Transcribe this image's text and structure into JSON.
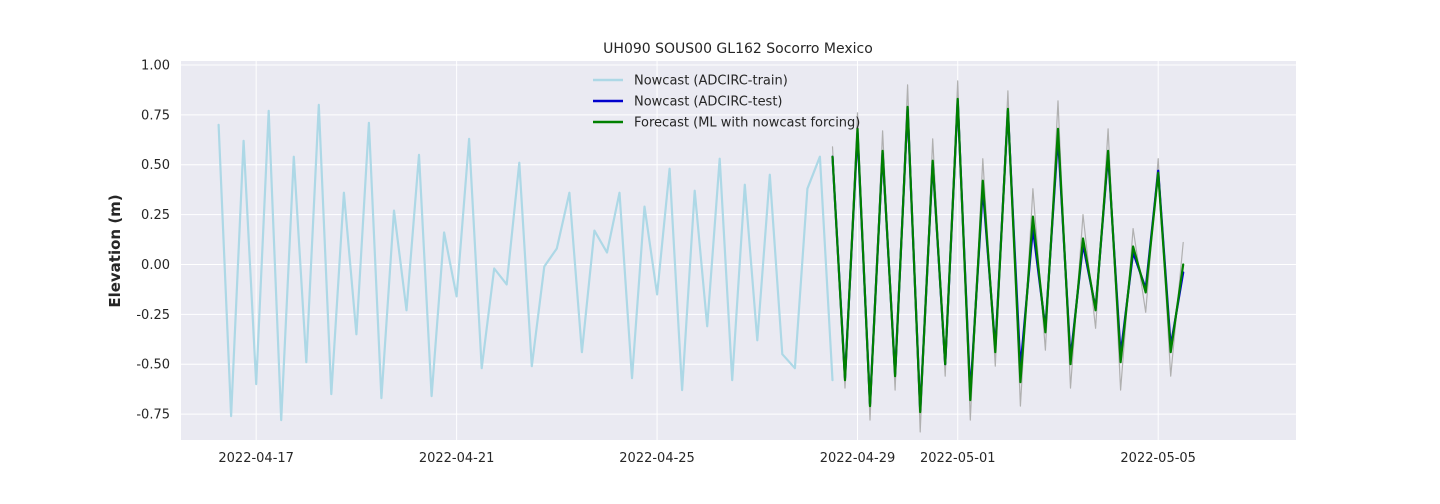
{
  "chart_data": {
    "type": "line",
    "title": "UH090 SOUS00 GL162 Socorro Mexico",
    "xlabel": "",
    "ylabel": "Elevation (m)",
    "xlim": [
      "2022-04-15T12:00",
      "2022-05-07T18:00"
    ],
    "ylim": [
      -0.88,
      1.02
    ],
    "grid": true,
    "legend_position": "top-center",
    "x_ticks": [
      "2022-04-17",
      "2022-04-21",
      "2022-04-25",
      "2022-04-29",
      "2022-05-01",
      "2022-05-05"
    ],
    "y_ticks": [
      "-0.75",
      "-0.50",
      "-0.25",
      "0.00",
      "0.25",
      "0.50",
      "0.75",
      "1.00"
    ],
    "series": [
      {
        "name": "Nowcast (ADCIRC-train)",
        "color": "#add8e6",
        "x": [
          "2022-04-16T06:00",
          "2022-04-16T12:00",
          "2022-04-16T18:00",
          "2022-04-17T00:00",
          "2022-04-17T06:00",
          "2022-04-17T12:00",
          "2022-04-17T18:00",
          "2022-04-18T00:00",
          "2022-04-18T06:00",
          "2022-04-18T12:00",
          "2022-04-18T18:00",
          "2022-04-19T00:00",
          "2022-04-19T06:00",
          "2022-04-19T12:00",
          "2022-04-19T18:00",
          "2022-04-20T00:00",
          "2022-04-20T06:00",
          "2022-04-20T12:00",
          "2022-04-20T18:00",
          "2022-04-21T00:00",
          "2022-04-21T06:00",
          "2022-04-21T12:00",
          "2022-04-21T18:00",
          "2022-04-22T00:00",
          "2022-04-22T06:00",
          "2022-04-22T12:00",
          "2022-04-22T18:00",
          "2022-04-23T00:00",
          "2022-04-23T06:00",
          "2022-04-23T12:00",
          "2022-04-23T18:00",
          "2022-04-24T00:00",
          "2022-04-24T06:00",
          "2022-04-24T12:00",
          "2022-04-24T18:00",
          "2022-04-25T00:00",
          "2022-04-25T06:00",
          "2022-04-25T12:00",
          "2022-04-25T18:00",
          "2022-04-26T00:00",
          "2022-04-26T06:00",
          "2022-04-26T12:00",
          "2022-04-26T18:00",
          "2022-04-27T00:00",
          "2022-04-27T06:00",
          "2022-04-27T12:00",
          "2022-04-27T18:00",
          "2022-04-28T00:00",
          "2022-04-28T06:00",
          "2022-04-28T12:00"
        ],
        "values": [
          0.7,
          -0.76,
          0.62,
          -0.6,
          0.77,
          -0.78,
          0.54,
          -0.49,
          0.8,
          -0.65,
          0.36,
          -0.35,
          0.71,
          -0.67,
          0.27,
          -0.23,
          0.55,
          -0.66,
          0.16,
          -0.16,
          0.63,
          -0.52,
          -0.02,
          -0.1,
          0.51,
          -0.51,
          -0.01,
          0.08,
          0.36,
          -0.44,
          0.17,
          0.06,
          0.36,
          -0.57,
          0.29,
          -0.15,
          0.48,
          -0.63,
          0.37,
          -0.31,
          0.53,
          -0.58,
          0.4,
          -0.38,
          0.45,
          -0.45,
          -0.52,
          0.38,
          0.54,
          -0.58
        ]
      },
      {
        "name": "",
        "color": "#b0b0b0",
        "x": [
          "2022-04-28T12:00",
          "2022-04-28T18:00",
          "2022-04-29T00:00",
          "2022-04-29T06:00",
          "2022-04-29T12:00",
          "2022-04-29T18:00",
          "2022-04-30T00:00",
          "2022-04-30T06:00",
          "2022-04-30T12:00",
          "2022-04-30T18:00",
          "2022-05-01T00:00",
          "2022-05-01T06:00",
          "2022-05-01T12:00",
          "2022-05-01T18:00",
          "2022-05-02T00:00",
          "2022-05-02T06:00",
          "2022-05-02T12:00",
          "2022-05-02T18:00",
          "2022-05-03T00:00",
          "2022-05-03T06:00",
          "2022-05-03T12:00",
          "2022-05-03T18:00",
          "2022-05-04T00:00",
          "2022-05-04T06:00",
          "2022-05-04T12:00",
          "2022-05-04T18:00",
          "2022-05-05T00:00",
          "2022-05-05T06:00",
          "2022-05-05T12:00"
        ],
        "values": [
          0.59,
          -0.62,
          0.76,
          -0.78,
          0.67,
          -0.63,
          0.9,
          -0.84,
          0.63,
          -0.56,
          0.92,
          -0.78,
          0.53,
          -0.51,
          0.87,
          -0.71,
          0.38,
          -0.43,
          0.82,
          -0.62,
          0.25,
          -0.32,
          0.68,
          -0.63,
          0.18,
          -0.24,
          0.53,
          -0.56,
          0.11
        ]
      },
      {
        "name": "Nowcast (ADCIRC-test)",
        "color": "#0000cd",
        "x": [
          "2022-04-28T12:00",
          "2022-04-28T18:00",
          "2022-04-29T00:00",
          "2022-04-29T06:00",
          "2022-04-29T12:00",
          "2022-04-29T18:00",
          "2022-04-30T00:00",
          "2022-04-30T06:00",
          "2022-04-30T12:00",
          "2022-04-30T18:00",
          "2022-05-01T00:00",
          "2022-05-01T06:00",
          "2022-05-01T12:00",
          "2022-05-01T18:00",
          "2022-05-02T00:00",
          "2022-05-02T06:00",
          "2022-05-02T12:00",
          "2022-05-02T18:00",
          "2022-05-03T00:00",
          "2022-05-03T06:00",
          "2022-05-03T12:00",
          "2022-05-03T18:00",
          "2022-05-04T00:00",
          "2022-05-04T06:00",
          "2022-05-04T12:00",
          "2022-05-04T18:00",
          "2022-05-05T00:00",
          "2022-05-05T06:00",
          "2022-05-05T12:00"
        ],
        "values": [
          0.54,
          -0.57,
          0.66,
          -0.7,
          0.56,
          -0.55,
          0.78,
          -0.73,
          0.51,
          -0.5,
          0.82,
          -0.65,
          0.38,
          -0.42,
          0.77,
          -0.52,
          0.18,
          -0.32,
          0.64,
          -0.47,
          0.1,
          -0.22,
          0.55,
          -0.45,
          0.06,
          -0.12,
          0.47,
          -0.41,
          -0.04
        ]
      },
      {
        "name": "Forecast (ML with nowcast forcing)",
        "color": "#008000",
        "x": [
          "2022-04-28T12:00",
          "2022-04-28T18:00",
          "2022-04-29T00:00",
          "2022-04-29T06:00",
          "2022-04-29T12:00",
          "2022-04-29T18:00",
          "2022-04-30T00:00",
          "2022-04-30T06:00",
          "2022-04-30T12:00",
          "2022-04-30T18:00",
          "2022-05-01T00:00",
          "2022-05-01T06:00",
          "2022-05-01T12:00",
          "2022-05-01T18:00",
          "2022-05-02T00:00",
          "2022-05-02T06:00",
          "2022-05-02T12:00",
          "2022-05-02T18:00",
          "2022-05-03T00:00",
          "2022-05-03T06:00",
          "2022-05-03T12:00",
          "2022-05-03T18:00",
          "2022-05-04T00:00",
          "2022-05-04T06:00",
          "2022-05-04T12:00",
          "2022-05-04T18:00",
          "2022-05-05T00:00",
          "2022-05-05T06:00",
          "2022-05-05T12:00"
        ],
        "values": [
          0.54,
          -0.58,
          0.68,
          -0.71,
          0.57,
          -0.56,
          0.79,
          -0.74,
          0.52,
          -0.5,
          0.83,
          -0.68,
          0.42,
          -0.44,
          0.78,
          -0.59,
          0.24,
          -0.34,
          0.68,
          -0.5,
          0.13,
          -0.23,
          0.57,
          -0.49,
          0.09,
          -0.14,
          0.46,
          -0.44,
          0.0
        ]
      }
    ]
  }
}
